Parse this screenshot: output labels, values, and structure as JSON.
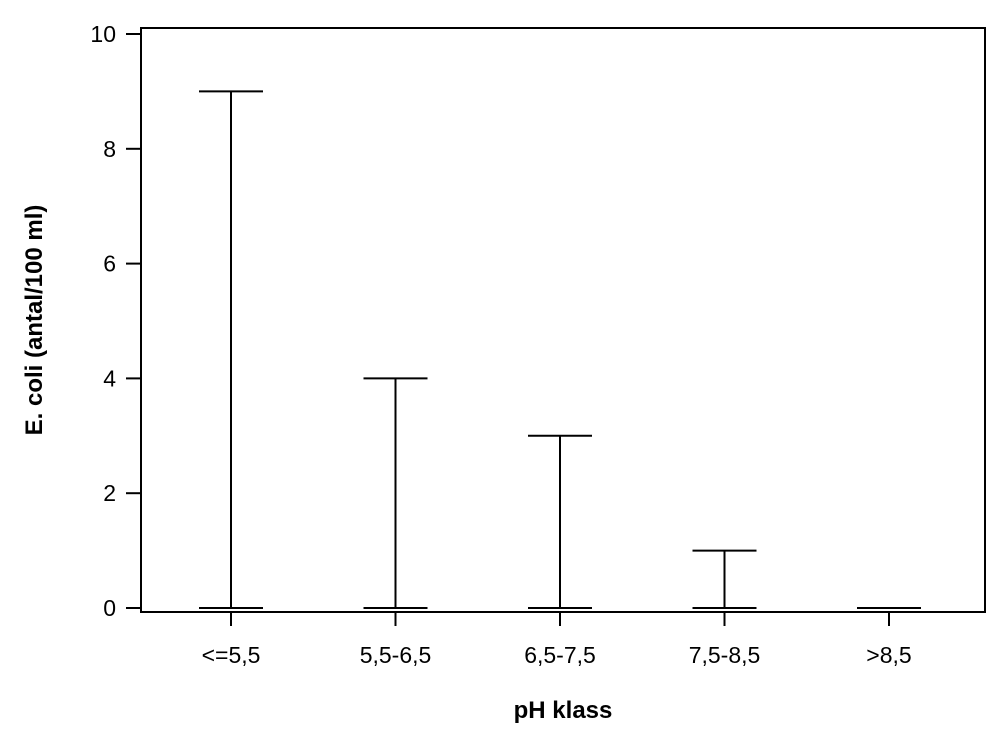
{
  "chart_data": {
    "type": "range",
    "title": "",
    "xlabel": "pH klass",
    "ylabel": "E. coli (antal/100 ml)",
    "categories": [
      "<=5,5",
      "5,5-6,5",
      "6,5-7,5",
      "7,5-8,5",
      ">8,5"
    ],
    "min": [
      0,
      0,
      0,
      0,
      0
    ],
    "max": [
      9,
      4,
      3,
      1,
      0
    ],
    "ylim": [
      0,
      10
    ],
    "yticks": [
      "0",
      "2",
      "4",
      "6",
      "8",
      "10"
    ],
    "grid": false,
    "legend": "none",
    "colors": {
      "line": "#000000",
      "background": "#ffffff"
    }
  }
}
